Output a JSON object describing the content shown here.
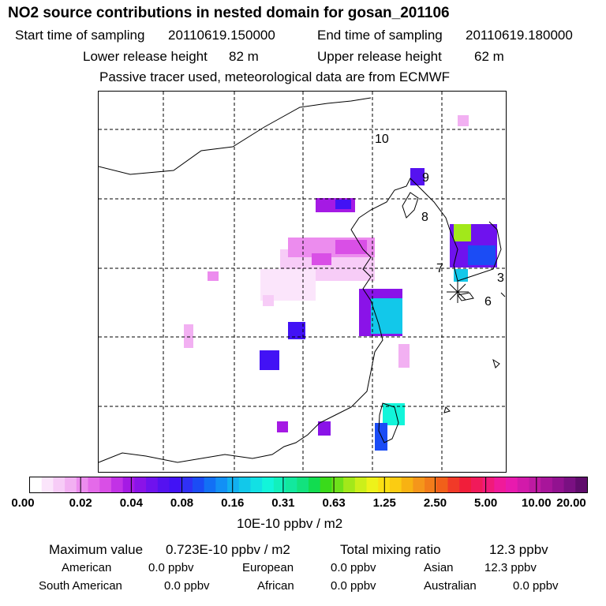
{
  "title": "NO2 source contributions in nested domain for gosan_201106",
  "header": {
    "start_label": "Start time of sampling",
    "start_value": "20110619.150000",
    "end_label": "End time of sampling",
    "end_value": "20110619.180000",
    "lower_label": "Lower release height",
    "lower_value": "82 m",
    "upper_label": "Upper release height",
    "upper_value": "62 m",
    "note": "Passive tracer used, meteorological data are from ECMWF"
  },
  "map": {
    "site_labels": [
      "10",
      "9",
      "8",
      "7",
      "3",
      "6"
    ],
    "receptor": "gosan"
  },
  "chart_data": {
    "type": "heatmap",
    "title": "NO2 source contributions in nested domain for gosan_201106",
    "colorbar": {
      "unit": "10E-10 ppbv / m2",
      "ticks": [
        "0.00",
        "0.02",
        "0.04",
        "0.08",
        "0.16",
        "0.31",
        "0.63",
        "1.25",
        "2.50",
        "5.00",
        "10.00",
        "20.00"
      ],
      "colors": [
        "#ffffff",
        "#fbe5fb",
        "#f7ccf7",
        "#f2b0f2",
        "#ec8cee",
        "#e46ae9",
        "#d94fe6",
        "#c232e6",
        "#a51ae4",
        "#8a13e8",
        "#6f12ee",
        "#5512f0",
        "#4212f5",
        "#3030f5",
        "#1b4cf5",
        "#1270f5",
        "#1290f5",
        "#12b0f0",
        "#12c8ea",
        "#12e0e4",
        "#12f5da",
        "#12f0bc",
        "#12e89e",
        "#12e27e",
        "#12dc50",
        "#3ada1a",
        "#6ee11a",
        "#a2e81a",
        "#ccef1a",
        "#eef21a",
        "#fbe012",
        "#fbcc12",
        "#f8b212",
        "#f5961a",
        "#f27c1a",
        "#f1601a",
        "#f13a28",
        "#f11e3a",
        "#f11a5a",
        "#f11a7a",
        "#f01a9a",
        "#e81aae",
        "#d21aaa",
        "#be1aa2",
        "#a8159a",
        "#921290",
        "#7a1082",
        "#600c6c"
      ]
    },
    "stats": {
      "max_label": "Maximum value",
      "max_value": "0.723E-10 ppbv / m2",
      "total_label": "Total mixing ratio",
      "total_value": "12.3 ppbv"
    },
    "contributions": [
      {
        "region": "American",
        "value": "0.0 ppbv"
      },
      {
        "region": "European",
        "value": "0.0 ppbv"
      },
      {
        "region": "Asian",
        "value": "12.3 ppbv"
      },
      {
        "region": "South American",
        "value": "0.0 ppbv"
      },
      {
        "region": "African",
        "value": "0.0 ppbv"
      },
      {
        "region": "Australian",
        "value": "0.0 ppbv"
      }
    ]
  }
}
